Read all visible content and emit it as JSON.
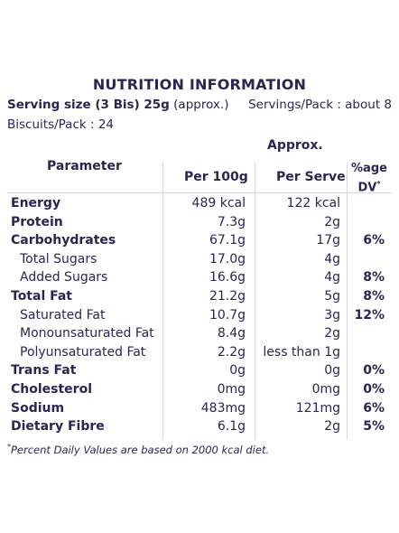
{
  "title": "NUTRITION INFORMATION",
  "serving": {
    "size_label": "Serving size (3 Bis) 25g",
    "size_note": "(approx.)",
    "servings_per_pack": "Servings/Pack : about 8",
    "biscuits_per_pack": "Biscuits/Pack : 24"
  },
  "headers": {
    "approx": "Approx.",
    "parameter": "Parameter",
    "per_100g": "Per 100g",
    "per_serve": "Per Serve",
    "dv_line1": "%age",
    "dv_line2": "DV",
    "dv_mark": "*"
  },
  "rows": [
    {
      "name": "Energy",
      "per_100g": "489 kcal",
      "per_serve": "122 kcal",
      "dv": ""
    },
    {
      "name": "Protein",
      "per_100g": "7.3g",
      "per_serve": "2g",
      "dv": ""
    },
    {
      "name": "Carbohydrates",
      "per_100g": "67.1g",
      "per_serve": "17g",
      "dv": "6%"
    },
    {
      "name": "Total Sugars",
      "per_100g": "17.0g",
      "per_serve": "4g",
      "dv": ""
    },
    {
      "name": "Added Sugars",
      "per_100g": "16.6g",
      "per_serve": "4g",
      "dv": "8%"
    },
    {
      "name": "Total Fat",
      "per_100g": "21.2g",
      "per_serve": "5g",
      "dv": "8%"
    },
    {
      "name": "Saturated Fat",
      "per_100g": "10.7g",
      "per_serve": "3g",
      "dv": "12%"
    },
    {
      "name": "Monounsaturated Fat",
      "per_100g": "8.4g",
      "per_serve": "2g",
      "dv": ""
    },
    {
      "name": "Polyunsaturated Fat",
      "per_100g": "2.2g",
      "per_serve": "less than 1g",
      "dv": ""
    },
    {
      "name": "Trans Fat",
      "per_100g": "0g",
      "per_serve": "0g",
      "dv": "0%"
    },
    {
      "name": "Cholesterol",
      "per_100g": "0mg",
      "per_serve": "0mg",
      "dv": "0%"
    },
    {
      "name": "Sodium",
      "per_100g": "483mg",
      "per_serve": "121mg",
      "dv": "6%"
    },
    {
      "name": "Dietary Fibre",
      "per_100g": "6.1g",
      "per_serve": "2g",
      "dv": "5%"
    }
  ],
  "footnote": {
    "mark": "*",
    "text": "Percent Daily Values are based on 2000 kcal diet."
  },
  "colors": {
    "text": "#2a2651",
    "rule": "#d8d8e0",
    "background": "#ffffff"
  }
}
